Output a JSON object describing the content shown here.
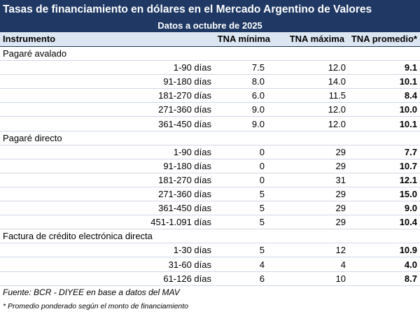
{
  "header": {
    "title": "Tasas de financiamiento en dólares en el Mercado Argentino de Valores",
    "subtitle": "Datos a octubre de 2025"
  },
  "table": {
    "columns": [
      "Instrumento",
      "TNA mínima",
      "TNA máxima",
      "TNA promedio*"
    ],
    "groups": [
      {
        "name": "Pagaré avalado",
        "rows": [
          [
            "1-90 días",
            "7.5",
            "12.0",
            "9.1"
          ],
          [
            "91-180 días",
            "8.0",
            "14.0",
            "10.1"
          ],
          [
            "181-270 días",
            "6.0",
            "11.5",
            "8.4"
          ],
          [
            "271-360 días",
            "9.0",
            "12.0",
            "10.0"
          ],
          [
            "361-450 días",
            "9.0",
            "12.0",
            "10.1"
          ]
        ]
      },
      {
        "name": "Pagaré directo",
        "rows": [
          [
            "1-90 días",
            "0",
            "29",
            "7.7"
          ],
          [
            "91-180 días",
            "0",
            "29",
            "10.7"
          ],
          [
            "181-270 días",
            "0",
            "31",
            "12.1"
          ],
          [
            "271-360 días",
            "5",
            "29",
            "15.0"
          ],
          [
            "361-450 días",
            "5",
            "29",
            "9.0"
          ],
          [
            "451-1.091 días",
            "5",
            "29",
            "10.4"
          ]
        ]
      },
      {
        "name": "Factura de crédito electrónica directa",
        "rows": [
          [
            "1-30 días",
            "5",
            "12",
            "10.9"
          ],
          [
            "31-60 días",
            "4",
            "4",
            "4.0"
          ],
          [
            "61-126 días",
            "6",
            "10",
            "8.7"
          ]
        ]
      }
    ]
  },
  "footer": {
    "source": "Fuente: BCR - DIYEE en base a datos del MAV",
    "note": "* Promedio ponderado según el monto de financiamiento"
  }
}
